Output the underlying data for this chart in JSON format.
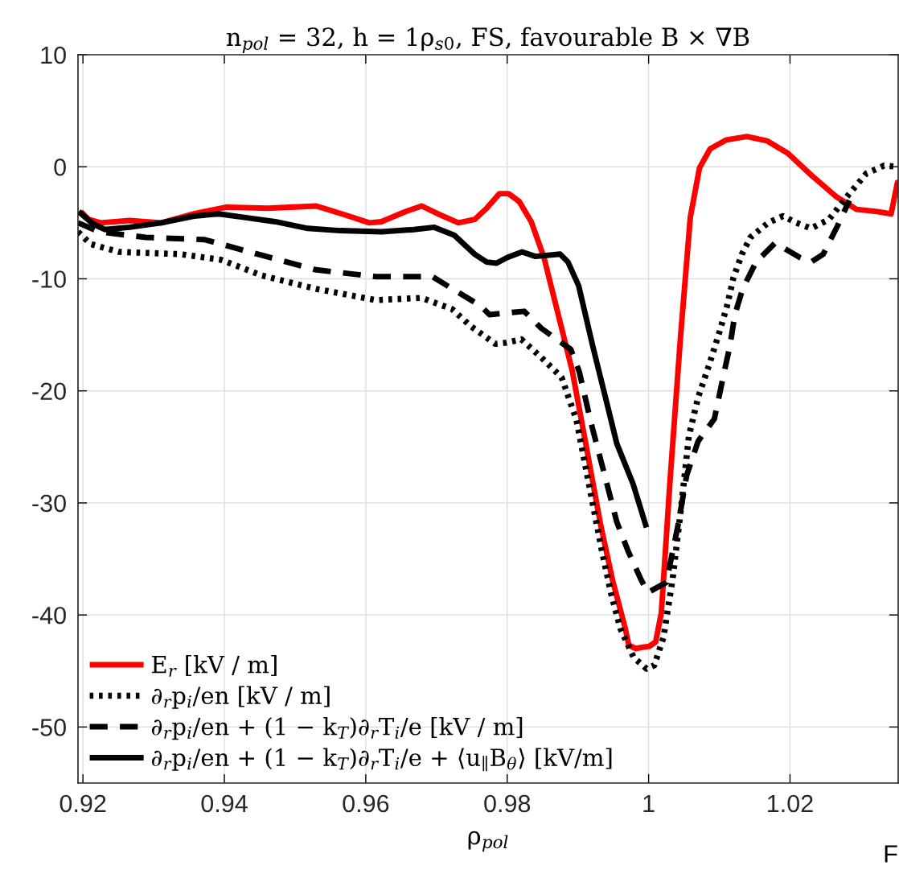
{
  "chart_data": {
    "type": "line",
    "title": "n$_{pol}$ = 32, h = 1ρ$_{s0}$, FS, favourable B × ∇B",
    "xlabel": "ρ$_{pol}$",
    "xlim": [
      0.9193,
      1.0353
    ],
    "ylim": [
      -55,
      10
    ],
    "xticks": [
      0.92,
      0.94,
      0.96,
      0.98,
      1,
      1.02
    ],
    "yticks": [
      -50,
      -40,
      -30,
      -20,
      -10,
      0,
      10
    ],
    "grid": true,
    "legend": "bottom left",
    "annotations": [
      "F"
    ],
    "series": [
      {
        "name": "E$_{r}$ [kV / m]",
        "color": "#ff0000",
        "line_style": "solid",
        "x": [
          0.9197,
          0.9208,
          0.9225,
          0.9266,
          0.9311,
          0.9357,
          0.9403,
          0.9461,
          0.953,
          0.9576,
          0.9605,
          0.9622,
          0.9656,
          0.9679,
          0.9702,
          0.9731,
          0.9754,
          0.9771,
          0.9789,
          0.9802,
          0.9817,
          0.9834,
          0.9852,
          0.9875,
          0.9892,
          0.9909,
          0.9932,
          0.9949,
          0.9967,
          0.9972,
          0.9982,
          0.999,
          1.0001,
          1.001,
          1.0018,
          1.003,
          1.0045,
          1.0059,
          1.0072,
          1.0087,
          1.011,
          1.0139,
          1.0168,
          1.0197,
          1.0231,
          1.0266,
          1.0294,
          1.0323,
          1.0343,
          1.0352,
          1.0353
        ],
        "values": [
          -4.0,
          -4.7,
          -5.0,
          -4.8,
          -5.0,
          -4.2,
          -3.6,
          -3.7,
          -3.5,
          -4.4,
          -5.0,
          -4.9,
          -4.0,
          -3.5,
          -4.2,
          -5.0,
          -4.7,
          -3.7,
          -2.4,
          -2.4,
          -3.1,
          -4.9,
          -8.1,
          -13.9,
          -18.2,
          -24.0,
          -31.9,
          -36.9,
          -41.2,
          -42.7,
          -43.0,
          -42.9,
          -42.8,
          -42.4,
          -39.8,
          -28.3,
          -15.3,
          -4.5,
          -0.1,
          1.6,
          2.4,
          2.7,
          2.3,
          1.2,
          -0.8,
          -2.7,
          -3.8,
          -4.0,
          -4.2,
          -1.4,
          -1.4
        ]
      },
      {
        "name": "∂$_{r}$p$_{i}$/en [kV / m]",
        "color": "#000000",
        "line_style": "dotted",
        "x": [
          0.9193,
          0.9211,
          0.9251,
          0.9338,
          0.9395,
          0.9453,
          0.953,
          0.9614,
          0.9679,
          0.9722,
          0.9748,
          0.9783,
          0.9799,
          0.982,
          0.9848,
          0.9877,
          0.9898,
          0.991,
          0.9922,
          0.9934,
          0.9947,
          0.996,
          0.9979,
          0.9997,
          1.0008,
          1.0021,
          1.0034,
          1.0046,
          1.0057,
          1.007,
          1.0086,
          1.0099,
          1.0111,
          1.012,
          1.0132,
          1.0144,
          1.0169,
          1.019,
          1.0209,
          1.023,
          1.0255,
          1.0284,
          1.0308,
          1.0333,
          1.0353
        ],
        "values": [
          -5.8,
          -6.9,
          -7.6,
          -7.8,
          -8.3,
          -9.7,
          -10.9,
          -11.9,
          -11.7,
          -12.7,
          -14.2,
          -15.8,
          -15.7,
          -15.4,
          -17.0,
          -18.8,
          -22.6,
          -26.5,
          -30.4,
          -34.3,
          -38.1,
          -41.2,
          -43.8,
          -44.8,
          -44.5,
          -42.0,
          -36.8,
          -30.4,
          -24.0,
          -20.6,
          -17.6,
          -15.0,
          -12.4,
          -9.9,
          -7.8,
          -6.3,
          -5.0,
          -4.4,
          -5.0,
          -5.5,
          -4.7,
          -2.4,
          -0.6,
          0.1,
          0.0
        ]
      },
      {
        "name": "∂$_{r}$p$_{i}$/en + (1 − k$_{T}$)∂$_{r}$T$_{i}$/e [kV / m]",
        "color": "#000000",
        "line_style": "dashed",
        "x": [
          0.9193,
          0.9223,
          0.9289,
          0.9372,
          0.9453,
          0.953,
          0.9614,
          0.9694,
          0.9762,
          0.9775,
          0.9824,
          0.9848,
          0.989,
          0.9902,
          0.9918,
          0.9939,
          0.9955,
          0.9971,
          0.9989,
          0.9999,
          1.0025,
          1.0041,
          1.0054,
          1.007,
          1.0093,
          1.0107,
          1.0115,
          1.0122,
          1.0133,
          1.0152,
          1.0179,
          1.0214,
          1.023,
          1.0247,
          1.0267,
          1.0284
        ],
        "values": [
          -5.0,
          -5.8,
          -6.3,
          -6.5,
          -7.9,
          -9.2,
          -9.8,
          -9.8,
          -12.4,
          -13.2,
          -12.9,
          -14.4,
          -16.3,
          -18.3,
          -22.7,
          -27.8,
          -31.7,
          -34.3,
          -36.8,
          -38.0,
          -37.1,
          -32.2,
          -27.5,
          -24.5,
          -22.5,
          -18.3,
          -16.0,
          -13.2,
          -10.9,
          -8.5,
          -6.8,
          -8.1,
          -8.5,
          -7.8,
          -5.3,
          -3.0
        ]
      },
      {
        "name": "∂$_{r}$p$_{i}$/en + (1 − k$_{T}$)∂$_{r}$T$_{i}$/e + ⟨u$_{∥}$B$_{θ}$⟩ [kV/m]",
        "color": "#000000",
        "line_style": "solid",
        "x": [
          0.9194,
          0.9214,
          0.9231,
          0.9266,
          0.9311,
          0.9357,
          0.9392,
          0.9426,
          0.9472,
          0.9518,
          0.9564,
          0.9622,
          0.9668,
          0.9697,
          0.9725,
          0.9754,
          0.9771,
          0.9785,
          0.98,
          0.9821,
          0.984,
          0.9875,
          0.9886,
          0.9901,
          0.9921,
          0.9941,
          0.9955,
          0.9978,
          0.9997
        ],
        "values": [
          -4.0,
          -5.1,
          -5.6,
          -5.4,
          -5.0,
          -4.4,
          -4.2,
          -4.5,
          -4.9,
          -5.5,
          -5.7,
          -5.8,
          -5.6,
          -5.4,
          -6.1,
          -7.8,
          -8.5,
          -8.6,
          -8.1,
          -7.6,
          -8.0,
          -7.8,
          -8.5,
          -10.6,
          -16.0,
          -21.1,
          -24.7,
          -28.3,
          -32.2
        ]
      }
    ]
  }
}
